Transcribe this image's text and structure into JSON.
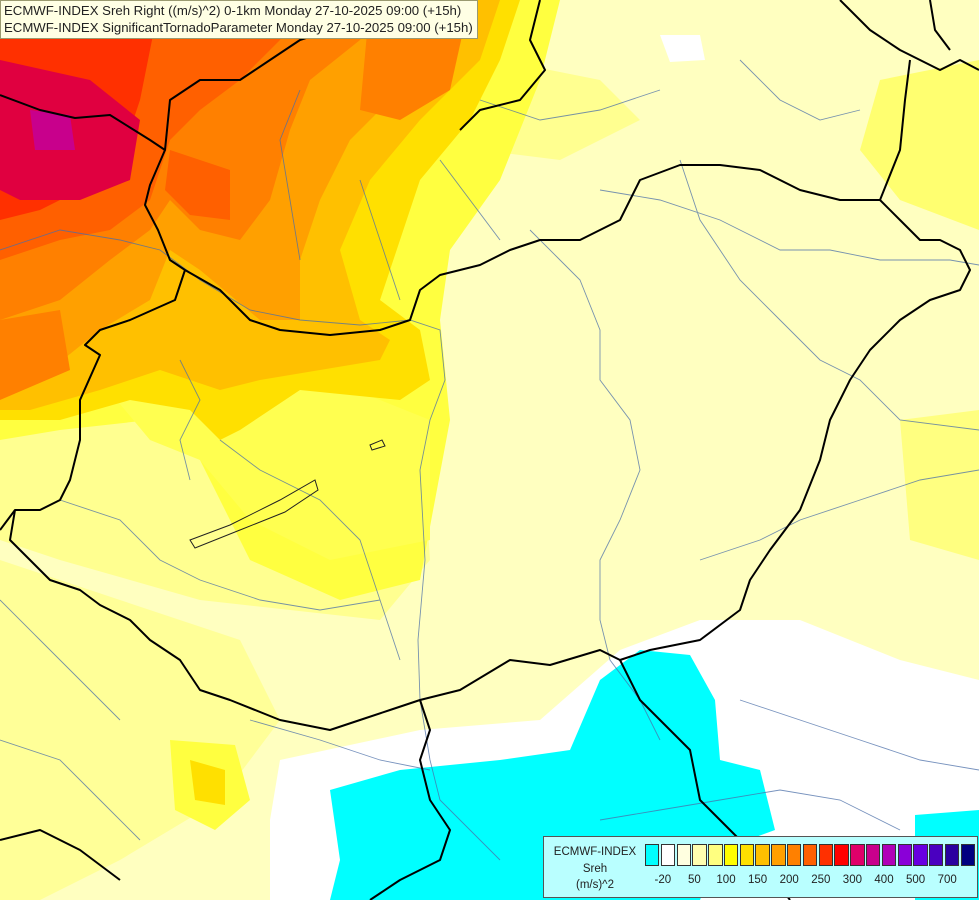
{
  "map": {
    "title_lines": [
      "ECMWF-INDEX Sreh Right ((m/s)^2) 0-1km Monday 27-10-2025 09:00 (+15h)",
      "ECMWF-INDEX SignificantTornadoParameter Monday 27-10-2025 09:00 (+15h)"
    ],
    "field": "Storm relative helicity 0-1km",
    "region": "Hungary and surrounding Central Europe"
  },
  "legend": {
    "source": "ECMWF-INDEX",
    "variable": "Sreh",
    "unit": "(m/s)^2",
    "tick_labels": [
      "-20",
      "50",
      "100",
      "150",
      "200",
      "250",
      "300",
      "400",
      "500",
      "700"
    ],
    "colors": [
      "#00ffff",
      "#ffffff",
      "#ffffe0",
      "#ffffb0",
      "#ffff80",
      "#ffff00",
      "#ffe000",
      "#ffc000",
      "#ffa000",
      "#ff8000",
      "#ff6000",
      "#ff3000",
      "#ff0000",
      "#e0006a",
      "#c8008c",
      "#b000b8",
      "#8a00d8",
      "#6800e0",
      "#4a00c0",
      "#2a00a0",
      "#000080"
    ]
  }
}
